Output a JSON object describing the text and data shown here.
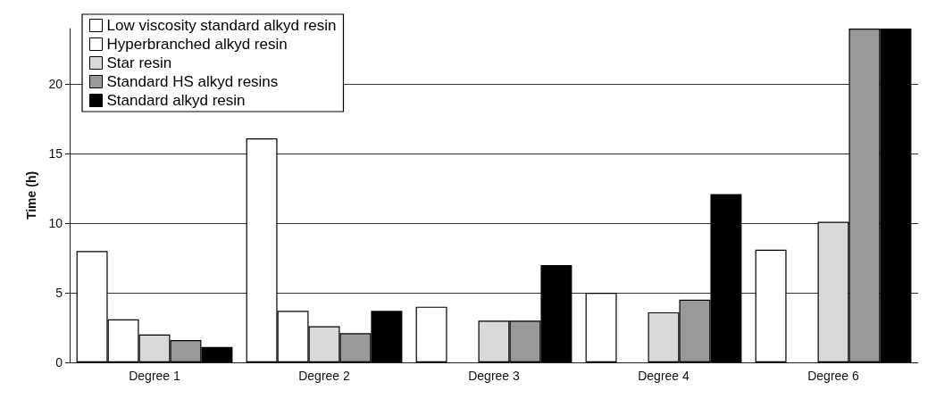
{
  "chart_data": {
    "type": "bar",
    "ylabel": "Time (h)",
    "categories": [
      "Degree 1",
      "Degree 2",
      "Degree 3",
      "Degree 4",
      "Degree 6"
    ],
    "series": [
      {
        "name": "Low viscosity standard alkyd resin",
        "color": "#ffffff",
        "values": [
          8.0,
          16.1,
          4.0,
          5.0,
          8.1
        ]
      },
      {
        "name": "Hyperbranched alkyd resin",
        "color": "#ffffff",
        "values": [
          3.1,
          3.7,
          null,
          null,
          null
        ]
      },
      {
        "name": "Star resin",
        "color": "#d9d9d9",
        "values": [
          2.0,
          2.6,
          3.0,
          3.6,
          10.1
        ]
      },
      {
        "name": "Standard HS alkyd resins",
        "color": "#999999",
        "values": [
          1.6,
          2.1,
          3.0,
          4.5,
          24
        ]
      },
      {
        "name": "Standard alkyd resin",
        "color": "#000000",
        "values": [
          1.1,
          3.7,
          7.0,
          12.1,
          24
        ]
      }
    ],
    "ylim": [
      0,
      24
    ],
    "yticks": [
      0,
      5,
      10,
      15,
      20
    ],
    "grid": "y",
    "legend": "top left"
  }
}
